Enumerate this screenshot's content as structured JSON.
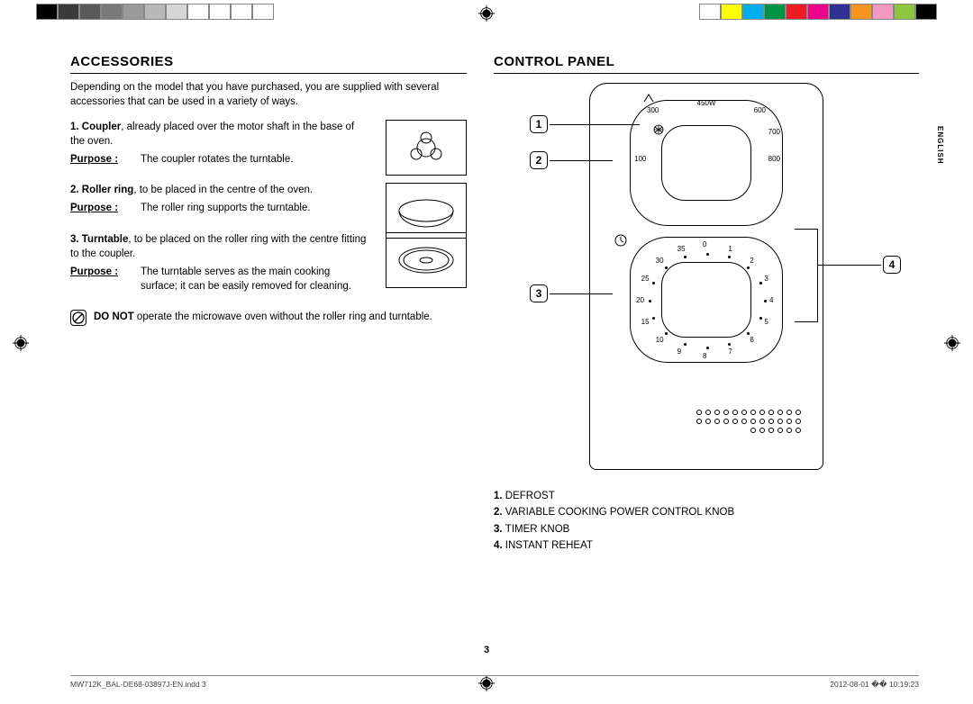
{
  "colorbar_left": [
    "#000000",
    "#3a3a3a",
    "#595959",
    "#7a7a7a",
    "#9a9a9a",
    "#b8b8b8",
    "#d6d6d6",
    "#ffffff",
    "#ffffff",
    "#ffffff",
    "#ffffff"
  ],
  "colorbar_right": [
    "#ffffff",
    "#ffff00",
    "#00aeef",
    "#009245",
    "#ed1c24",
    "#ec008c",
    "#2e3192",
    "#f7941e",
    "#f49ac1",
    "#8dc63f",
    "#000000"
  ],
  "accessories": {
    "heading": "ACCESSORIES",
    "intro": "Depending on the model that you have purchased, you are supplied with several accessories that can be used in a variety of ways.",
    "purpose_label": "Purpose :",
    "items": [
      {
        "title": "Coupler",
        "desc": ", already placed over the motor shaft in the base of the oven.",
        "purpose": "The coupler rotates the turntable."
      },
      {
        "title": "Roller ring",
        "desc": ", to be placed in the centre of the oven.",
        "purpose": "The roller ring supports the turntable."
      },
      {
        "title": "Turntable",
        "desc": ", to be placed on the roller ring with the centre fitting to the coupler.",
        "purpose": "The turntable serves as the main cooking surface; it can be easily removed for cleaning."
      }
    ],
    "warning_bold": "DO NOT",
    "warning_text": " operate the microwave oven without the roller ring and turntable."
  },
  "control_panel": {
    "heading": "CONTROL PANEL",
    "power_labels": {
      "top": "450W",
      "l1": "300",
      "l2": "100",
      "r1": "600",
      "r2": "700",
      "r3": "800"
    },
    "timer_labels": [
      "0",
      "1",
      "2",
      "3",
      "4",
      "5",
      "6",
      "7",
      "8",
      "9",
      "10",
      "15",
      "20",
      "25",
      "30",
      "35"
    ],
    "callouts": [
      "1",
      "2",
      "3",
      "4"
    ],
    "legend": [
      "DEFROST",
      "VARIABLE COOKING POWER CONTROL KNOB",
      "TIMER KNOB",
      "INSTANT REHEAT"
    ]
  },
  "side_tab": "ENGLISH",
  "page_number": "3",
  "footer": {
    "left": "MW712K_BAL-DE68-03897J-EN.indd   3",
    "right": "2012-08-01   �� 10:19:23"
  }
}
